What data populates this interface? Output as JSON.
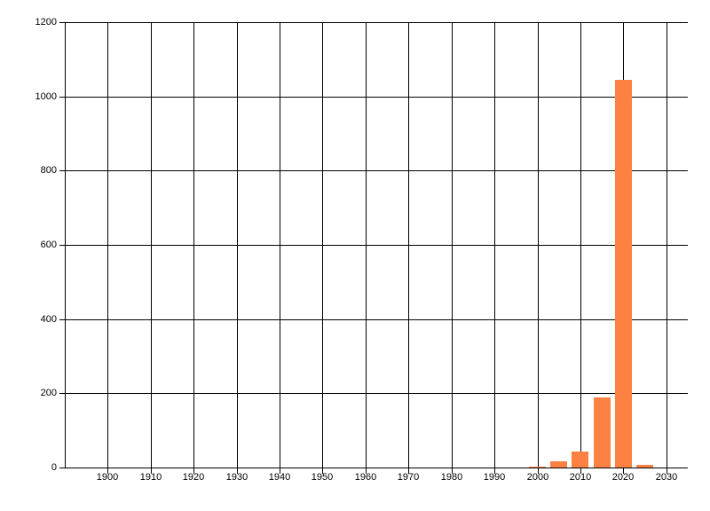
{
  "chart_data": {
    "type": "bar",
    "title": "",
    "xlabel": "",
    "ylabel": "",
    "x": [
      2000,
      2005,
      2010,
      2015,
      2020,
      2025
    ],
    "values": [
      3,
      17,
      43,
      190,
      1045,
      8
    ],
    "bar_width_years": 4,
    "bar_color": "#FC8142",
    "xlim": [
      1890,
      2035
    ],
    "ylim": [
      0,
      1200
    ],
    "x_ticks": [
      1900,
      1910,
      1920,
      1930,
      1940,
      1950,
      1960,
      1970,
      1980,
      1990,
      2000,
      2010,
      2020,
      2030
    ],
    "y_ticks": [
      0,
      200,
      400,
      600,
      800,
      1000,
      1200
    ],
    "grid": true,
    "gridline_color": "#000000",
    "axis_color": "#000000",
    "text_color": "#000000",
    "background": "#FFFFFF",
    "legend": "none"
  }
}
